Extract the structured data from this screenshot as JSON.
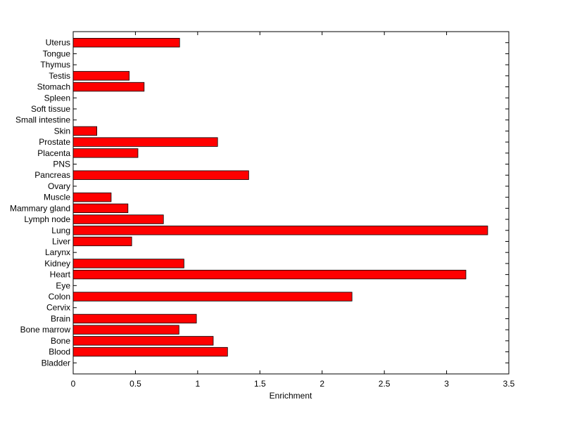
{
  "chart_data": {
    "type": "barh",
    "xlabel": "Enrichment",
    "categories": [
      "Bladder",
      "Blood",
      "Bone",
      "Bone marrow",
      "Brain",
      "Cervix",
      "Colon",
      "Eye",
      "Heart",
      "Kidney",
      "Larynx",
      "Liver",
      "Lung",
      "Lymph node",
      "Mammary gland",
      "Muscle",
      "Ovary",
      "Pancreas",
      "PNS",
      "Placenta",
      "Prostate",
      "Skin",
      "Small intestine",
      "Soft tissue",
      "Spleen",
      "Stomach",
      "Testis",
      "Thymus",
      "Tongue",
      "Uterus"
    ],
    "values": [
      0,
      1.24,
      1.125,
      0.85,
      0.99,
      0,
      2.24,
      0,
      3.155,
      0.89,
      0,
      0.47,
      3.33,
      0.725,
      0.44,
      0.305,
      0,
      1.41,
      0,
      0.52,
      1.16,
      0.19,
      0,
      0,
      0,
      0.57,
      0.45,
      0,
      0,
      0.855
    ],
    "color": "#ff0000",
    "xlim": [
      0,
      3.5
    ],
    "xticks": [
      0,
      0.5,
      1,
      1.5,
      2,
      2.5,
      3,
      3.5
    ]
  }
}
